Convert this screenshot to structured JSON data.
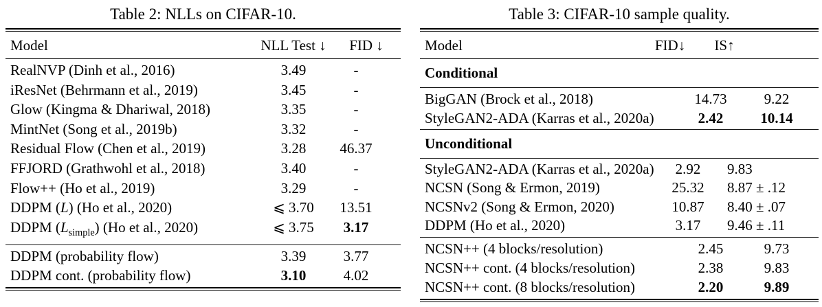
{
  "page": {
    "background": "#ffffff",
    "text_color": "#000000"
  },
  "table2": {
    "caption": "Table 2: NLLs on CIFAR-10.",
    "headers": {
      "model": "Model",
      "nll": "NLL Test ↓",
      "fid": "FID ↓"
    },
    "rows": [
      {
        "model": "RealNVP (Dinh et al., 2016)",
        "nll": "3.49",
        "fid": "-"
      },
      {
        "model": "iResNet (Behrmann et al., 2019)",
        "nll": "3.45",
        "fid": "-"
      },
      {
        "model": "Glow (Kingma & Dhariwal, 2018)",
        "nll": "3.35",
        "fid": "-"
      },
      {
        "model": "MintNet (Song et al., 2019b)",
        "nll": "3.32",
        "fid": "-"
      },
      {
        "model": "Residual Flow (Chen et al., 2019)",
        "nll": "3.28",
        "fid": "46.37"
      },
      {
        "model": "FFJORD (Grathwohl et al., 2018)",
        "nll": "3.40",
        "fid": "-"
      },
      {
        "model": "Flow++ (Ho et al., 2019)",
        "nll": "3.29",
        "fid": "-"
      },
      {
        "model_pre": "DDPM (",
        "model_var": "L",
        "model_post": ") (Ho et al., 2020)",
        "nll": "⩽ 3.70",
        "fid": "13.51"
      },
      {
        "model_pre": "DDPM (",
        "model_var": "L",
        "model_sub": "simple",
        "model_post": ") (Ho et al., 2020)",
        "nll": "⩽ 3.75",
        "fid": "3.17"
      }
    ],
    "rows_flow": [
      {
        "model": "DDPM (probability flow)",
        "nll": "3.39",
        "fid": "3.77"
      },
      {
        "model": "DDPM cont. (probability flow)",
        "nll": "3.10",
        "fid": "4.02"
      }
    ]
  },
  "table3": {
    "caption": "Table 3: CIFAR-10 sample quality.",
    "headers": {
      "model": "Model",
      "fid": "FID↓",
      "is": "IS↑"
    },
    "section_conditional": "Conditional",
    "section_unconditional": "Unconditional",
    "conditional_rows": [
      {
        "model": "BigGAN (Brock et al., 2018)",
        "fid": "14.73",
        "is": "9.22"
      },
      {
        "model": "StyleGAN2-ADA (Karras et al., 2020a)",
        "fid": "2.42",
        "is": "10.14"
      }
    ],
    "unconditional_rows": [
      {
        "model": "StyleGAN2-ADA (Karras et al., 2020a)",
        "fid": "2.92",
        "is": "9.83"
      },
      {
        "model": "NCSN (Song & Ermon, 2019)",
        "fid": "25.32",
        "is": "8.87 ± .12"
      },
      {
        "model": "NCSNv2 (Song & Ermon, 2020)",
        "fid": "10.87",
        "is": "8.40 ± .07"
      },
      {
        "model": "DDPM (Ho et al., 2020)",
        "fid": "3.17",
        "is": "9.46 ± .11"
      }
    ],
    "ncsnpp_rows": [
      {
        "model": "NCSN++ (4 blocks/resolution)",
        "fid": "2.45",
        "is": "9.73"
      },
      {
        "model": "NCSN++ cont. (4 blocks/resolution)",
        "fid": "2.38",
        "is": "9.83"
      },
      {
        "model": "NCSN++ cont. (8 blocks/resolution)",
        "fid": "2.20",
        "is": "9.89"
      }
    ]
  }
}
